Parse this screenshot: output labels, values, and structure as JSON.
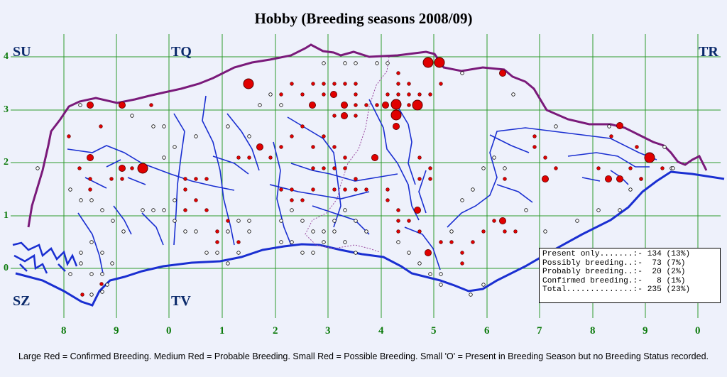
{
  "title": "Hobby (Breeding seasons 2008/09)",
  "corners": {
    "top_left": "SU",
    "top_mid": "TQ",
    "top_right": "TR",
    "bottom_left": "SZ",
    "bottom_mid": "TV"
  },
  "y_labels": [
    "4",
    "3",
    "2",
    "1",
    "0"
  ],
  "x_labels": [
    "8",
    "9",
    "0",
    "1",
    "2",
    "3",
    "4",
    "5",
    "6",
    "7",
    "8",
    "9",
    "0"
  ],
  "legend": {
    "lines": [
      "Present only.......:- 134 (13%)",
      "Possibly breeding..:-  73 (7%)",
      "Probably breeding..:-  20 (2%)",
      "Confirmed breeding.:-   8 (1%)",
      "Total..............:- 235 (23%)"
    ]
  },
  "footer": "Large Red = Confirmed Breeding. Medium Red = Probable Breeding. Small Red = Possible Breeding. Small 'O' = Present in Breeding Season but no Breeding Status recorded.",
  "colors": {
    "grid": "#2d9b2d",
    "coast": "#1a2fd1",
    "boundary": "#7a1a7a",
    "rivers": "#1a2fd1",
    "record": "#e00000"
  }
}
